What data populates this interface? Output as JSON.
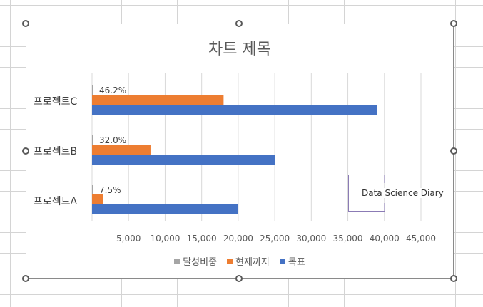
{
  "chart_data": {
    "type": "bar",
    "orientation": "horizontal",
    "title": "차트 제목",
    "categories": [
      "프로젝트C",
      "프로젝트B",
      "프로젝트A"
    ],
    "series": [
      {
        "name": "달성비중",
        "values": [
          46.2,
          32.0,
          7.5
        ],
        "color": "#a5a5a5"
      },
      {
        "name": "현재까지",
        "values": [
          18000,
          8000,
          1500
        ],
        "color": "#ed7d31"
      },
      {
        "name": "목표",
        "values": [
          39000,
          25000,
          20000
        ],
        "color": "#4472c4"
      }
    ],
    "data_labels": [
      "46.2%",
      "32.0%",
      "7.5%"
    ],
    "x_ticks": [
      "-",
      "5,000",
      "10,000",
      "15,000",
      "20,000",
      "25,000",
      "30,000",
      "35,000",
      "40,000",
      "45,000"
    ],
    "xlim": [
      0,
      45000
    ],
    "grid": true,
    "legend_position": "bottom"
  },
  "watermark": "Data Science Diary"
}
